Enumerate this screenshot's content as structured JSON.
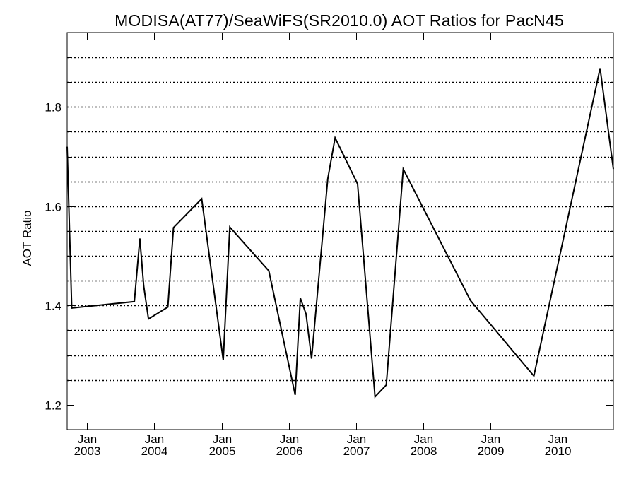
{
  "chart_data": {
    "type": "line",
    "title": "MODISA(AT77)/SeaWiFS(SR2010.0)  AOT Ratios for PacN45",
    "xlabel": "",
    "ylabel": "AOT Ratio",
    "ylim": [
      1.15,
      1.95
    ],
    "y_major_ticks": [
      1.2,
      1.4,
      1.6,
      1.8
    ],
    "y_tick_labels": [
      "1.2",
      "1.4",
      "1.6",
      "1.8"
    ],
    "y_minor_gridlines": [
      1.25,
      1.3,
      1.35,
      1.4,
      1.45,
      1.5,
      1.55,
      1.6,
      1.65,
      1.7,
      1.75,
      1.8,
      1.85,
      1.9
    ],
    "x_range": [
      "2002-09-15",
      "2010-10-31"
    ],
    "x_ticks": [
      {
        "date": "2003-01-01",
        "month": "Jan",
        "year": "2003"
      },
      {
        "date": "2004-01-01",
        "month": "Jan",
        "year": "2004"
      },
      {
        "date": "2005-01-01",
        "month": "Jan",
        "year": "2005"
      },
      {
        "date": "2006-01-01",
        "month": "Jan",
        "year": "2006"
      },
      {
        "date": "2007-01-01",
        "month": "Jan",
        "year": "2007"
      },
      {
        "date": "2008-01-01",
        "month": "Jan",
        "year": "2008"
      },
      {
        "date": "2009-01-01",
        "month": "Jan",
        "year": "2009"
      },
      {
        "date": "2010-01-01",
        "month": "Jan",
        "year": "2010"
      }
    ],
    "grid": "horizontal dotted",
    "line_color": "#000000",
    "series": [
      {
        "points": [
          {
            "x": "2002-09-15",
            "y": 1.72
          },
          {
            "x": "2002-10-10",
            "y": 1.395
          },
          {
            "x": "2003-09-15",
            "y": 1.408
          },
          {
            "x": "2003-10-15",
            "y": 1.535
          },
          {
            "x": "2003-11-05",
            "y": 1.44
          },
          {
            "x": "2003-12-01",
            "y": 1.373
          },
          {
            "x": "2004-03-15",
            "y": 1.397
          },
          {
            "x": "2004-04-15",
            "y": 1.557
          },
          {
            "x": "2004-09-15",
            "y": 1.615
          },
          {
            "x": "2005-01-10",
            "y": 1.29
          },
          {
            "x": "2005-02-15",
            "y": 1.558
          },
          {
            "x": "2005-09-15",
            "y": 1.47
          },
          {
            "x": "2006-02-05",
            "y": 1.22
          },
          {
            "x": "2006-03-05",
            "y": 1.415
          },
          {
            "x": "2006-04-05",
            "y": 1.383
          },
          {
            "x": "2006-05-05",
            "y": 1.293
          },
          {
            "x": "2006-08-01",
            "y": 1.655
          },
          {
            "x": "2006-09-10",
            "y": 1.738
          },
          {
            "x": "2007-01-10",
            "y": 1.645
          },
          {
            "x": "2007-04-15",
            "y": 1.216
          },
          {
            "x": "2007-06-15",
            "y": 1.24
          },
          {
            "x": "2007-09-15",
            "y": 1.675
          },
          {
            "x": "2008-09-15",
            "y": 1.41
          },
          {
            "x": "2009-08-25",
            "y": 1.258
          },
          {
            "x": "2010-08-20",
            "y": 1.878
          },
          {
            "x": "2010-10-31",
            "y": 1.675
          }
        ]
      }
    ]
  }
}
